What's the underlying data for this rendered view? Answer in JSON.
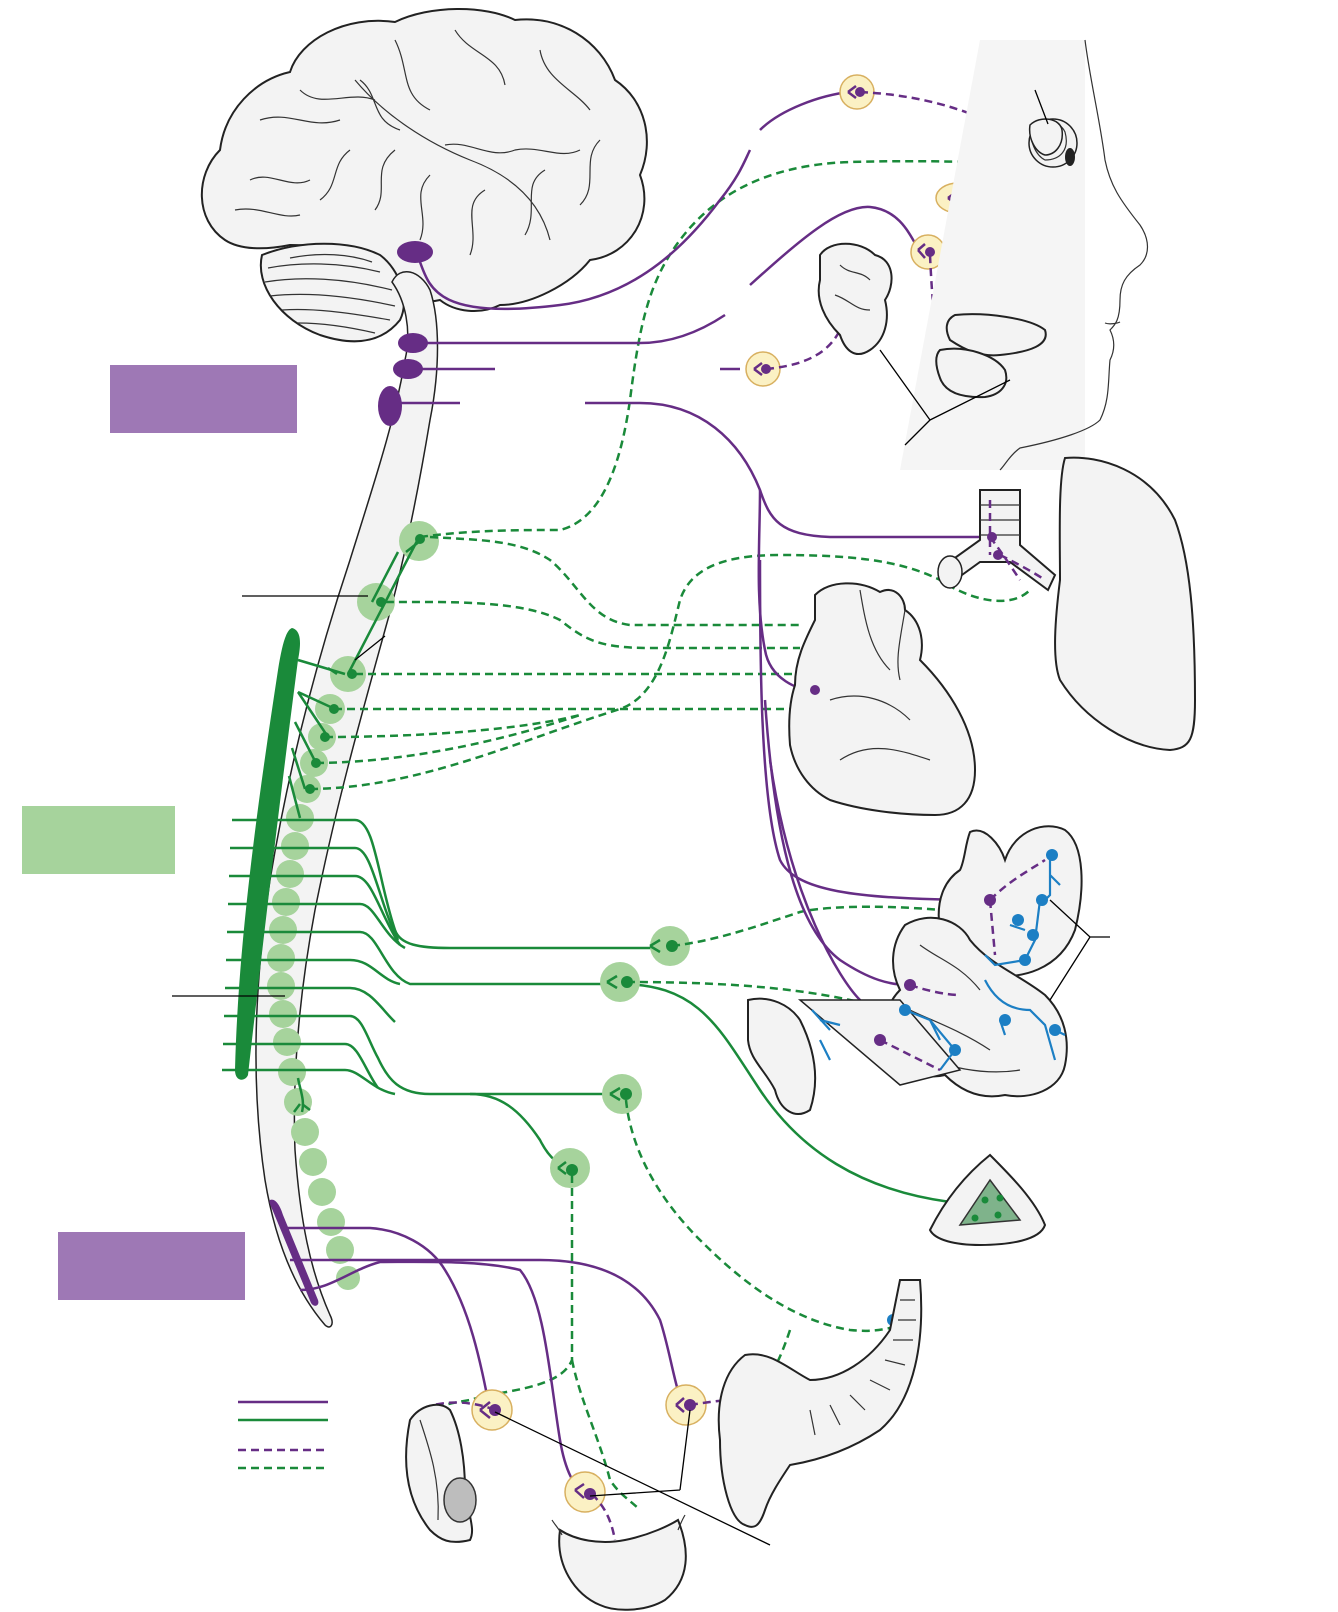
{
  "colors": {
    "parasympathetic": "#662d85",
    "sympathetic": "#1a8a3a",
    "enteric": "#1c7fc4",
    "sympathetic_label_box": "#a6d39c",
    "parasympathetic_label_box": "#9e78b5",
    "parasympathetic_ganglion_fill": "#fbf1c4"
  },
  "label_boxes": [
    {
      "id": "cranial-parasympathetic",
      "text": ""
    },
    {
      "id": "thoracolumbar-sympathetic",
      "text": ""
    },
    {
      "id": "sacral-parasympathetic",
      "text": ""
    }
  ],
  "legend": [
    {
      "style": "solid",
      "color": "parasympathetic",
      "text": ""
    },
    {
      "style": "solid",
      "color": "sympathetic",
      "text": ""
    },
    {
      "style": "dashed",
      "color": "parasympathetic",
      "text": ""
    },
    {
      "style": "dashed",
      "color": "sympathetic",
      "text": ""
    }
  ],
  "organs": [
    "brain",
    "cerebellum",
    "brainstem",
    "spinal-cord",
    "eye",
    "lacrimal-gland",
    "salivary-glands",
    "trachea",
    "lung",
    "heart",
    "stomach",
    "small-intestine",
    "large-intestine",
    "adrenal-gland",
    "rectum",
    "bladder",
    "genitals"
  ]
}
